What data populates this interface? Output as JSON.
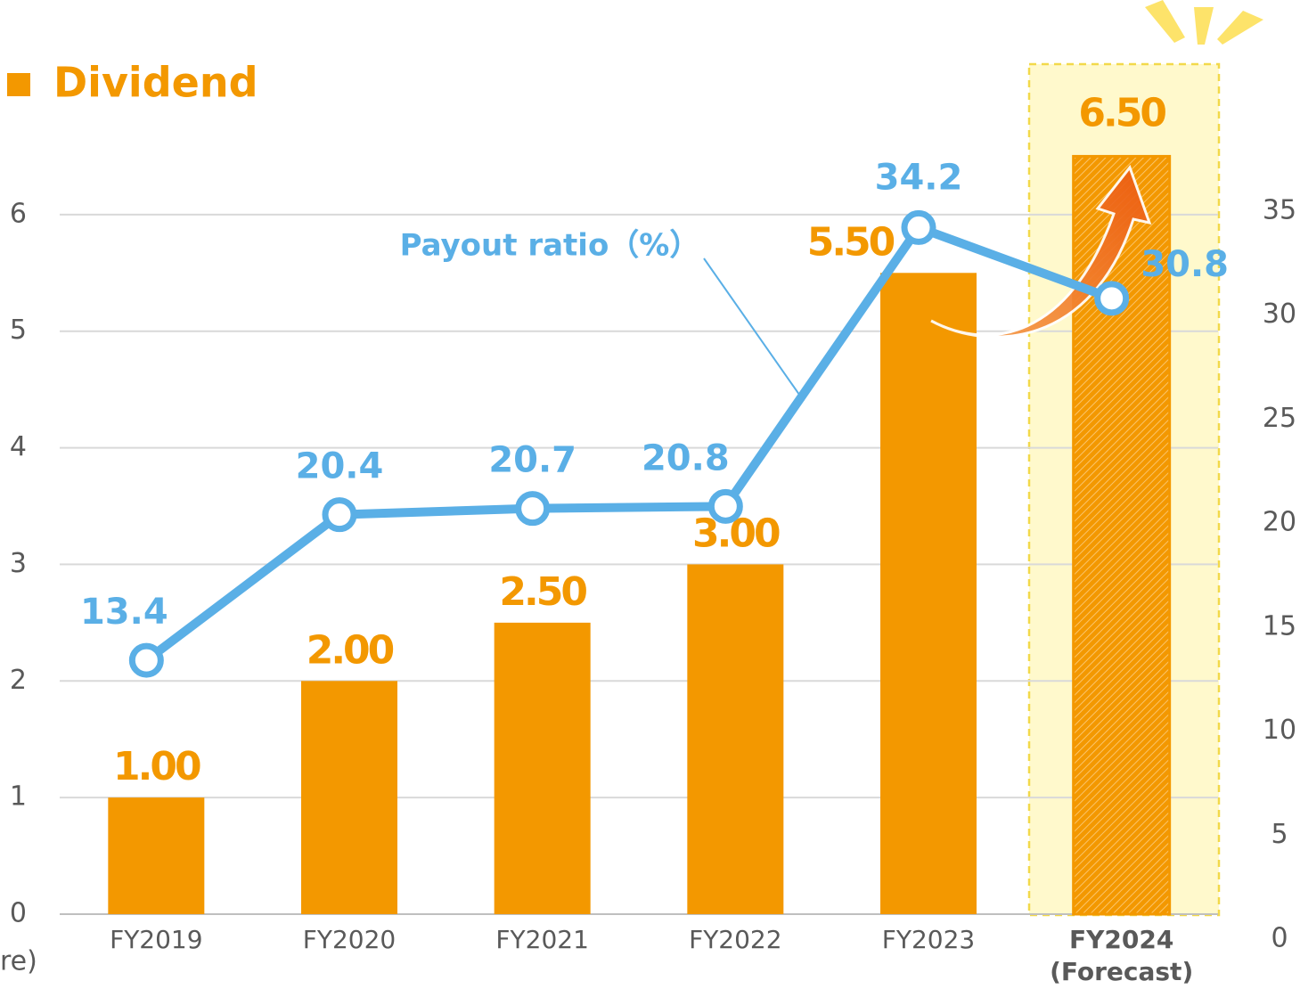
{
  "chart_data": {
    "type": "bar",
    "title": "Dividend",
    "y_axis_label": "re)",
    "forecast_label": "(Forecast)",
    "categories": [
      "FY2019",
      "FY2020",
      "FY2021",
      "FY2022",
      "FY2023",
      "FY2024"
    ],
    "series": [
      {
        "name": "Dividend",
        "type": "bar",
        "color": "#f39800",
        "values": [
          1.0,
          2.0,
          2.5,
          3.0,
          5.5,
          6.5
        ],
        "value_labels": [
          "1.00",
          "2.00",
          "2.50",
          "3.00",
          "5.50",
          "6.50"
        ]
      },
      {
        "name": "Payout ratio（%）",
        "type": "line",
        "axis": "y2",
        "color": "#5aafe6",
        "values": [
          13.4,
          20.4,
          20.7,
          20.8,
          34.2,
          30.8
        ]
      }
    ],
    "ylim": [
      0,
      7
    ],
    "yticks": [
      0,
      1,
      2,
      3,
      4,
      5,
      6
    ],
    "y2lim": [
      0,
      40
    ],
    "y2ticks": [
      0,
      5,
      10,
      15,
      20,
      25,
      30,
      35
    ],
    "grid": true
  }
}
